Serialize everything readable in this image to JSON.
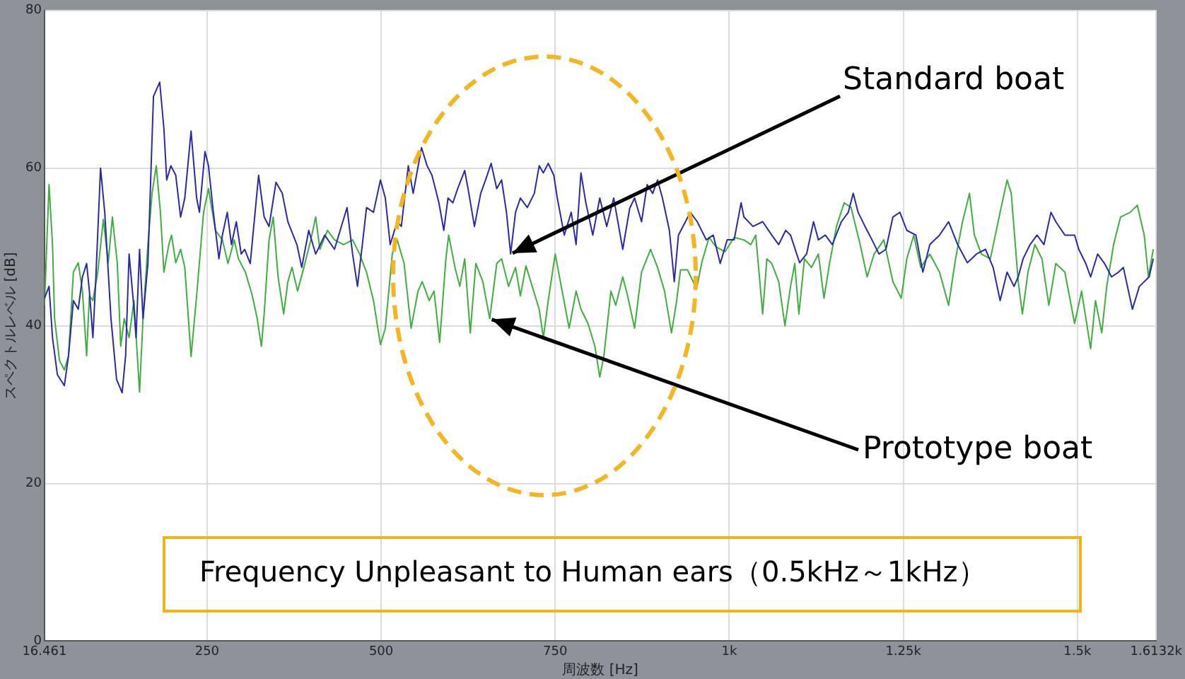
{
  "chart_data": {
    "type": "line",
    "xlabel": "周波数 [Hz]",
    "ylabel": "スペクトルレベル [dB]",
    "xlim": [
      16.461,
      1613.2
    ],
    "ylim": [
      0,
      80
    ],
    "xticks": [
      16.461,
      250,
      500,
      750,
      {
        "value": 1000,
        "label": "1k"
      },
      {
        "value": 1250,
        "label": "1.25k"
      },
      {
        "value": 1500,
        "label": "1.5k"
      },
      {
        "value": 1613.2,
        "label": "1.6132k"
      }
    ],
    "yticks": [
      0,
      20,
      40,
      60,
      80
    ],
    "grid": true,
    "legend": false,
    "marker": "none",
    "line_style": "solid",
    "series": [
      {
        "color": "#2a2aa8",
        "x": [
          16.461,
          23,
          28,
          35,
          45,
          51,
          58,
          65,
          71,
          77,
          81,
          86,
          90,
          97,
          103,
          112,
          120,
          128,
          133,
          138,
          144,
          148,
          153,
          158,
          165,
          173,
          182,
          188,
          192,
          198,
          205,
          212,
          218,
          227,
          235,
          239,
          247,
          252,
          259,
          267,
          272,
          279,
          285,
          292,
          299,
          304,
          312,
          324,
          332,
          339,
          349,
          358,
          366,
          379,
          386,
          396,
          406,
          419,
          433,
          451,
          459,
          466,
          473,
          479,
          489,
          499,
          506,
          513,
          523,
          529,
          539,
          546,
          558,
          566,
          573,
          583,
          590,
          596,
          603,
          610,
          620,
          626,
          634,
          643,
          650,
          658,
          666,
          673,
          680,
          686,
          693,
          700,
          710,
          720,
          727,
          733,
          740,
          748,
          753,
          763,
          773,
          780,
          787,
          794,
          804,
          814,
          824,
          834,
          847,
          857,
          864,
          874,
          882,
          890,
          897,
          904,
          914,
          921,
          927,
          937,
          944,
          954,
          967,
          977,
          987,
          997,
          1007,
          1017,
          1021,
          1034,
          1048,
          1061,
          1071,
          1081,
          1088,
          1101,
          1111,
          1121,
          1128,
          1138,
          1148,
          1161,
          1171,
          1178,
          1185,
          1195,
          1205,
          1215,
          1225,
          1235,
          1245,
          1255,
          1268,
          1278,
          1288,
          1302,
          1315,
          1328,
          1342,
          1355,
          1368,
          1379,
          1389,
          1399,
          1409,
          1415,
          1422,
          1432,
          1442,
          1452,
          1462,
          1469,
          1482,
          1496,
          1502,
          1512,
          1519,
          1529,
          1539,
          1549,
          1559,
          1566,
          1579,
          1589,
          1603,
          1609
        ],
        "values": [
          43.5,
          45,
          38.5,
          33.8,
          32.4,
          36.2,
          43.2,
          42.1,
          46.2,
          47.9,
          44.4,
          38.5,
          45.6,
          60,
          54.4,
          40.9,
          33.2,
          31.5,
          36.2,
          49.1,
          43.2,
          38.5,
          49.7,
          40.9,
          47.9,
          69.1,
          70.9,
          65,
          58.5,
          60.3,
          59.1,
          53.8,
          56.2,
          64.7,
          56.2,
          54.4,
          62.1,
          60.3,
          54.4,
          48.5,
          51.5,
          54.4,
          50.3,
          53.2,
          49.1,
          49.7,
          47.9,
          59.1,
          53.8,
          52.6,
          58.2,
          56.8,
          53.2,
          50.3,
          47.4,
          52.1,
          49.1,
          51.5,
          49.7,
          55,
          49.1,
          45,
          50.3,
          55,
          54.4,
          58.5,
          56.2,
          50.3,
          53.2,
          52.6,
          60.3,
          56.8,
          62.6,
          60.3,
          59.1,
          55.6,
          52.1,
          56.2,
          55.6,
          57.4,
          59.7,
          56.8,
          52.6,
          56.8,
          58.5,
          60.6,
          57.4,
          58.5,
          54.4,
          49.1,
          54.4,
          56.2,
          55,
          56.8,
          60.3,
          59.4,
          60.6,
          59.1,
          56.2,
          51.5,
          54.4,
          50.3,
          59.4,
          55.6,
          51.5,
          56.2,
          52.6,
          56.2,
          49.7,
          54.9,
          56.2,
          53.2,
          57.9,
          56.8,
          58.5,
          56.2,
          52.1,
          45.6,
          51.5,
          53.2,
          54.4,
          53.2,
          50.9,
          51.5,
          47.9,
          50.9,
          50.9,
          55.6,
          53.8,
          52.6,
          53.2,
          51.5,
          50.3,
          52.1,
          51.5,
          48,
          49.1,
          53.2,
          50.9,
          51.5,
          50.3,
          53.2,
          54.4,
          56.8,
          54.4,
          52.6,
          50.9,
          49.1,
          49.7,
          53.8,
          54.4,
          52.1,
          51.5,
          46.8,
          50.3,
          51.5,
          53.2,
          50.3,
          48,
          49.1,
          49.7,
          47.4,
          43.2,
          46.8,
          45,
          46.2,
          48.5,
          50.3,
          51.5,
          50.3,
          54.4,
          53.2,
          51.5,
          51.5,
          49.7,
          47.9,
          46.2,
          49.1,
          47.9,
          46.2,
          46.8,
          47.4,
          42.1,
          45,
          46.2,
          48.5
        ]
      },
      {
        "color": "#3fae3f",
        "x": [
          16.461,
          23,
          28,
          31,
          38,
          45,
          51,
          58,
          65,
          71,
          77,
          81,
          86,
          93,
          101,
          108,
          114,
          121,
          126,
          131,
          138,
          145,
          153,
          158,
          165,
          171,
          177,
          183,
          188,
          195,
          199,
          205,
          212,
          218,
          227,
          235,
          245,
          252,
          262,
          272,
          280,
          289,
          295,
          305,
          315,
          322,
          328,
          332,
          339,
          345,
          352,
          360,
          366,
          372,
          380,
          389,
          399,
          406,
          412,
          423,
          433,
          446,
          459,
          469,
          479,
          489,
          499,
          506,
          516,
          523,
          533,
          543,
          553,
          559,
          569,
          576,
          584,
          593,
          597,
          606,
          613,
          620,
          628,
          636,
          646,
          656,
          666,
          673,
          683,
          693,
          700,
          708,
          717,
          727,
          733,
          740,
          750,
          760,
          770,
          780,
          787,
          797,
          807,
          814,
          820,
          830,
          837,
          847,
          854,
          864,
          874,
          887,
          897,
          907,
          917,
          924,
          930,
          940,
          953,
          961,
          971,
          981,
          994,
          1007,
          1021,
          1031,
          1038,
          1048,
          1054,
          1061,
          1071,
          1080,
          1088,
          1094,
          1100,
          1108,
          1118,
          1128,
          1136,
          1144,
          1154,
          1165,
          1175,
          1188,
          1198,
          1208,
          1222,
          1235,
          1247,
          1255,
          1265,
          1275,
          1288,
          1302,
          1315,
          1325,
          1335,
          1345,
          1352,
          1362,
          1375,
          1389,
          1399,
          1405,
          1415,
          1421,
          1429,
          1439,
          1449,
          1459,
          1469,
          1482,
          1496,
          1506,
          1519,
          1526,
          1535,
          1542,
          1552,
          1562,
          1576,
          1586,
          1596,
          1602,
          1609
        ],
        "values": [
          42.6,
          57.9,
          50.3,
          40.9,
          35.6,
          34.4,
          36.2,
          46.8,
          48,
          44.4,
          36.2,
          43.8,
          43.2,
          46.8,
          53.5,
          48,
          53.8,
          48,
          37.4,
          40.9,
          38.5,
          43.2,
          31.6,
          40.9,
          50.3,
          56.8,
          60.3,
          54.4,
          46.8,
          50.3,
          51.5,
          48,
          49.7,
          47.4,
          36.1,
          43.8,
          54.4,
          57.4,
          52.1,
          50.9,
          47.9,
          50.9,
          48.5,
          46.8,
          43.8,
          40.9,
          37.4,
          41.5,
          50.9,
          53.8,
          46.2,
          41.5,
          45.6,
          47.4,
          44.4,
          47.4,
          50.9,
          53.8,
          49.7,
          52.1,
          50.9,
          50.3,
          50.9,
          49.1,
          46.8,
          43.2,
          37.6,
          39.7,
          49.1,
          50.9,
          47.9,
          39.7,
          44.4,
          45.6,
          43.2,
          44.4,
          37.9,
          48.5,
          51.5,
          47.4,
          45,
          48.5,
          39.1,
          47.9,
          45.6,
          40.9,
          47.9,
          48.5,
          45,
          47.4,
          43.8,
          47.6,
          45,
          42.1,
          38.5,
          43.2,
          49.1,
          44.4,
          39.7,
          44.4,
          42.1,
          40.3,
          37.4,
          33.5,
          36.2,
          44.4,
          42.6,
          46.2,
          43.8,
          39.7,
          46.8,
          49.7,
          47.4,
          44.4,
          39.1,
          42.9,
          47.1,
          47.1,
          44.7,
          48.2,
          51.2,
          50,
          49.4,
          51.2,
          50.9,
          50.3,
          51.5,
          41.5,
          48.5,
          47.9,
          45.6,
          40,
          45,
          47.9,
          41.5,
          48.5,
          47.4,
          49.1,
          43.5,
          47.9,
          52.6,
          55.6,
          55,
          50.3,
          46.2,
          49.1,
          50.9,
          45.6,
          43.5,
          48.5,
          51.5,
          47.4,
          49.1,
          46.8,
          42.6,
          48.5,
          53.2,
          56.8,
          51.5,
          49.1,
          48.5,
          54.4,
          58.5,
          56.8,
          45.6,
          41.5,
          46.8,
          50.3,
          48.5,
          42.6,
          47.9,
          46.8,
          40.3,
          44.4,
          37.1,
          43.2,
          39.1,
          44.9,
          50.3,
          53.8,
          54.4,
          55.3,
          51.5,
          46.2,
          49.7
        ]
      }
    ],
    "annotations": [
      {
        "text": "Standard boat",
        "x": 686,
        "y": 49.1
      },
      {
        "text": "Prototype boat",
        "x": 656,
        "y": 40.9
      },
      "Frequency Unpleasant to Human ears（0.5kHz～1kHz）"
    ]
  }
}
